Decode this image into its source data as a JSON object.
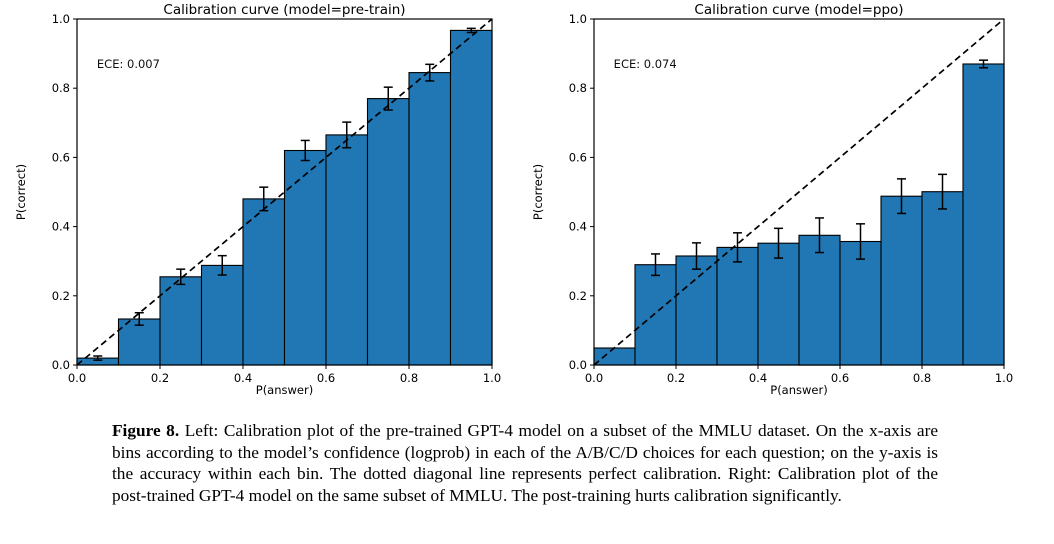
{
  "figure": {
    "caption_bold": "Figure 8.",
    "caption_rest": " Left: Calibration plot of the pre-trained GPT-4 model on a subset of the MMLU dataset. On the x-axis are bins according to the model’s confidence (logprob) in each of the A/B/C/D choices for each question; on the y-axis is the accuracy within each bin. The dotted diagonal line represents perfect calibration. Right: Calibration plot of the post-trained GPT-4 model on the same subset of MMLU. The post-training hurts calibration significantly."
  },
  "colors": {
    "bar_fill": "#2077b4",
    "bar_edge": "#000000",
    "error_bar": "#000000",
    "diagonal": "#000000",
    "frame": "#000000",
    "text": "#000000"
  },
  "chart_data": [
    {
      "type": "bar",
      "title": "Calibration curve (model=pre-train)",
      "annotation": "ECE: 0.007",
      "xlabel": "P(answer)",
      "ylabel": "P(correct)",
      "xlim": [
        0.0,
        1.0
      ],
      "ylim": [
        0.0,
        1.0
      ],
      "grid": false,
      "diagonal_reference_line": true,
      "xticks": [
        "0.0",
        "0.2",
        "0.4",
        "0.6",
        "0.8",
        "1.0"
      ],
      "yticks": [
        "0.0",
        "0.2",
        "0.4",
        "0.6",
        "0.8",
        "1.0"
      ],
      "bin_edges": [
        0.0,
        0.1,
        0.2,
        0.3,
        0.4,
        0.5,
        0.6,
        0.7,
        0.8,
        0.9,
        1.0
      ],
      "values": [
        0.02,
        0.133,
        0.255,
        0.288,
        0.48,
        0.62,
        0.665,
        0.77,
        0.845,
        0.967
      ],
      "errors": [
        0.006,
        0.018,
        0.022,
        0.028,
        0.034,
        0.029,
        0.037,
        0.033,
        0.024,
        0.006
      ]
    },
    {
      "type": "bar",
      "title": "Calibration curve (model=ppo)",
      "annotation": "ECE: 0.074",
      "xlabel": "P(answer)",
      "ylabel": "P(correct)",
      "xlim": [
        0.0,
        1.0
      ],
      "ylim": [
        0.0,
        1.0
      ],
      "grid": false,
      "diagonal_reference_line": true,
      "xticks": [
        "0.0",
        "0.2",
        "0.4",
        "0.6",
        "0.8",
        "1.0"
      ],
      "yticks": [
        "0.0",
        "0.2",
        "0.4",
        "0.6",
        "0.8",
        "1.0"
      ],
      "bin_edges": [
        0.0,
        0.1,
        0.2,
        0.3,
        0.4,
        0.5,
        0.6,
        0.7,
        0.8,
        0.9,
        1.0
      ],
      "values": [
        0.049,
        0.29,
        0.315,
        0.34,
        0.352,
        0.375,
        0.357,
        0.488,
        0.501,
        0.87
      ],
      "errors": [
        0,
        0.031,
        0.038,
        0.042,
        0.043,
        0.05,
        0.051,
        0.05,
        0.05,
        0.011
      ]
    }
  ]
}
